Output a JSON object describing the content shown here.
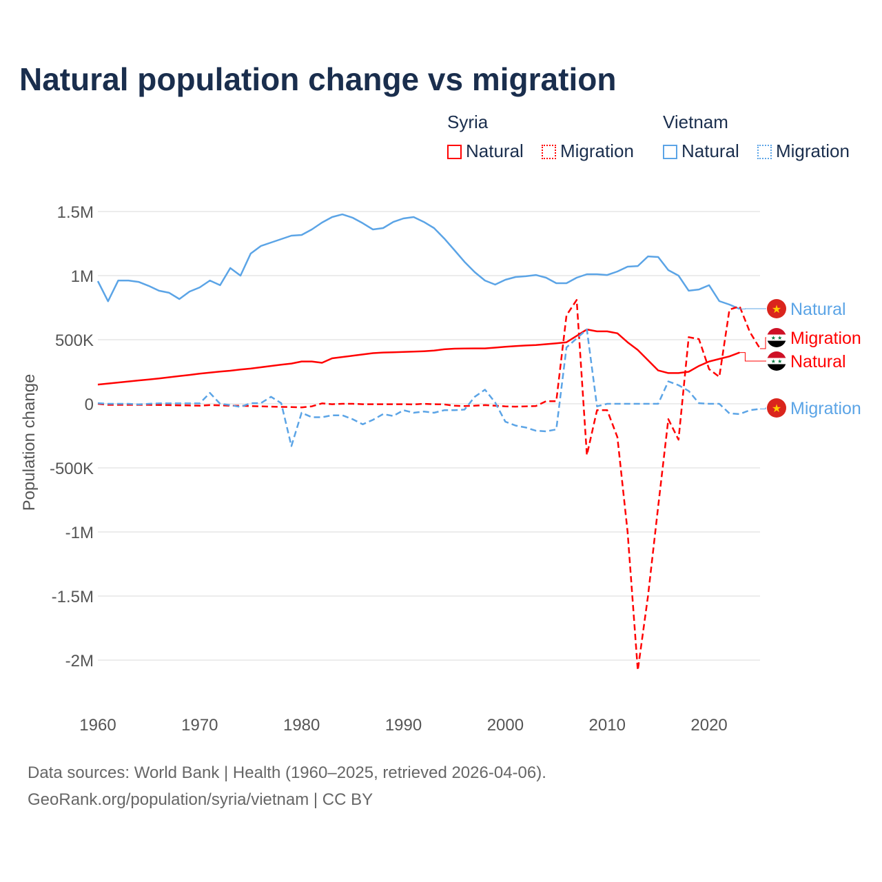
{
  "chart_data": {
    "type": "line",
    "title": "Natural population change vs migration",
    "xlabel": "",
    "ylabel": "Population change",
    "xlim": [
      1960,
      2025
    ],
    "ylim": [
      -2200000,
      1600000
    ],
    "grid": true,
    "yticks": [
      1500000,
      1000000,
      500000,
      0,
      -500000,
      -1000000,
      -1500000,
      -2000000
    ],
    "ytick_labels": [
      "1.5M",
      "1M",
      "500K",
      "0",
      "-500K",
      "-1M",
      "-1.5M",
      "-2M"
    ],
    "xticks": [
      1960,
      1970,
      1980,
      1990,
      2000,
      2010,
      2020
    ],
    "xtick_labels": [
      "1960",
      "1970",
      "1980",
      "1990",
      "2000",
      "2010",
      "2020"
    ],
    "legend": {
      "placement": "top-right",
      "groups": [
        {
          "name": "Syria",
          "items": [
            "Natural",
            "Migration"
          ]
        },
        {
          "name": "Vietnam",
          "items": [
            "Natural",
            "Migration"
          ]
        }
      ]
    },
    "series": [
      {
        "name": "Vietnam Natural",
        "country": "Vietnam",
        "kind": "Natural",
        "label": "Natural",
        "color": "#5ba4e6",
        "dashed": false,
        "start_year": 1960,
        "values": [
          957000,
          800000,
          962000,
          962000,
          951000,
          920000,
          882000,
          866000,
          817000,
          876000,
          908000,
          962000,
          925000,
          1059000,
          1000000,
          1172000,
          1231000,
          1258000,
          1285000,
          1312000,
          1317000,
          1360000,
          1414000,
          1457000,
          1478000,
          1452000,
          1409000,
          1360000,
          1371000,
          1419000,
          1446000,
          1457000,
          1419000,
          1371000,
          1290000,
          1199000,
          1107000,
          1027000,
          962000,
          930000,
          968000,
          989000,
          995000,
          1005000,
          984000,
          941000,
          941000,
          984000,
          1011000,
          1011000,
          1005000,
          1032000,
          1070000,
          1075000,
          1150000,
          1145000,
          1043000,
          1000000,
          882000,
          892000,
          925000,
          801000,
          774000,
          740000
        ]
      },
      {
        "name": "Syria Migration",
        "country": "Syria",
        "kind": "Migration",
        "label": "Migration",
        "color": "#ff0000",
        "dashed": true,
        "start_year": 1960,
        "values": [
          0,
          -8000,
          -8000,
          -8000,
          -8000,
          -8000,
          -9000,
          -10000,
          -12000,
          -13000,
          -15000,
          -10000,
          -12000,
          -15000,
          -15000,
          -18000,
          -20000,
          -22000,
          -24000,
          -26000,
          -28000,
          -20000,
          3000,
          -3000,
          0,
          0,
          -3000,
          -3000,
          -3000,
          -3000,
          -3000,
          -5000,
          0,
          -3000,
          -5000,
          -15000,
          -18000,
          -15000,
          -10000,
          -15000,
          -20000,
          -22000,
          -20000,
          -18000,
          20000,
          20000,
          690000,
          810000,
          -400000,
          -50000,
          -50000,
          -260000,
          -1000000,
          -2080000,
          -1500000,
          -800000,
          -120000,
          -280000,
          520000,
          505000,
          270000,
          210000,
          735000,
          760000,
          560000,
          430000
        ]
      },
      {
        "name": "Syria Natural",
        "country": "Syria",
        "kind": "Natural",
        "label": "Natural",
        "color": "#ff0000",
        "dashed": false,
        "start_year": 1960,
        "values": [
          150000,
          158000,
          166000,
          174000,
          182000,
          190000,
          198000,
          207000,
          216000,
          225000,
          235000,
          243000,
          251000,
          258000,
          267000,
          275000,
          285000,
          295000,
          305000,
          314000,
          330000,
          330000,
          320000,
          355000,
          365000,
          375000,
          385000,
          395000,
          400000,
          402000,
          405000,
          407000,
          410000,
          415000,
          425000,
          430000,
          431000,
          432000,
          432000,
          438000,
          445000,
          450000,
          455000,
          458000,
          465000,
          472000,
          480000,
          530000,
          580000,
          565000,
          565000,
          550000,
          480000,
          420000,
          340000,
          260000,
          240000,
          240000,
          250000,
          295000,
          330000,
          350000,
          370000,
          400000
        ]
      },
      {
        "name": "Vietnam Migration",
        "country": "Vietnam",
        "kind": "Migration",
        "label": "Migration",
        "color": "#5ba4e6",
        "dashed": true,
        "start_year": 1960,
        "values": [
          5000,
          0,
          0,
          0,
          -5000,
          0,
          3000,
          3000,
          3000,
          3000,
          3000,
          85000,
          0,
          -10000,
          -25000,
          5000,
          5000,
          55000,
          5000,
          -330000,
          -70000,
          -105000,
          -105000,
          -90000,
          -90000,
          -120000,
          -160000,
          -125000,
          -80000,
          -95000,
          -50000,
          -70000,
          -60000,
          -70000,
          -50000,
          -50000,
          -45000,
          55000,
          110000,
          10000,
          -140000,
          -170000,
          -185000,
          -210000,
          -215000,
          -200000,
          440000,
          510000,
          580000,
          -20000,
          0,
          0,
          0,
          0,
          0,
          0,
          175000,
          145000,
          100000,
          5000,
          0,
          0,
          -75000,
          -80000,
          -50000,
          -40000
        ]
      }
    ]
  },
  "footer": {
    "line1": "Data sources: World Bank | Health (1960–2025, retrieved 2026-04-06).",
    "line2": "GeoRank.org/population/syria/vietnam | CC BY"
  }
}
